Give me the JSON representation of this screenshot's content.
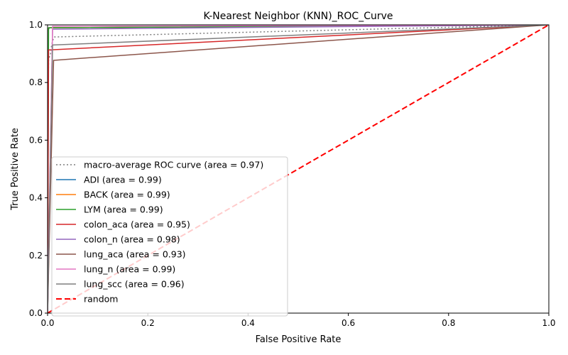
{
  "chart_data": {
    "type": "line",
    "title": "K-Nearest Neighbor (KNN)_ROC_Curve",
    "xlabel": "False Positive Rate",
    "ylabel": "True Positive Rate",
    "xlim": [
      0.0,
      1.0
    ],
    "ylim": [
      0.0,
      1.0
    ],
    "xticks": [
      "0.0",
      "0.2",
      "0.4",
      "0.6",
      "0.8",
      "1.0"
    ],
    "yticks": [
      "0.0",
      "0.2",
      "0.4",
      "0.6",
      "0.8",
      "1.0"
    ],
    "grid": false,
    "legend_position": "lower-left",
    "series": [
      {
        "name": "macro-average ROC curve (area = 0.97)",
        "color": "#7f7f7f",
        "style": "dotted",
        "x": [
          0.0,
          0.0,
          0.002,
          0.006,
          0.008,
          0.012,
          0.014,
          1.0
        ],
        "y": [
          0.0,
          0.5,
          0.88,
          0.9,
          0.93,
          0.955,
          0.958,
          1.0
        ]
      },
      {
        "name": "ADI (area = 0.99)",
        "color": "#1f77b4",
        "style": "solid",
        "x": [
          0.0,
          0.0,
          0.004,
          1.0
        ],
        "y": [
          0.0,
          0.98,
          0.99,
          1.0
        ]
      },
      {
        "name": "BACK (area = 0.99)",
        "color": "#ff7f0e",
        "style": "solid",
        "x": [
          0.0,
          0.0,
          0.004,
          1.0
        ],
        "y": [
          0.0,
          0.985,
          0.99,
          1.0
        ]
      },
      {
        "name": "LYM (area = 0.99)",
        "color": "#2ca02c",
        "style": "solid",
        "x": [
          0.0,
          0.002,
          1.0
        ],
        "y": [
          0.0,
          0.99,
          1.0
        ]
      },
      {
        "name": "colon_aca (area = 0.95)",
        "color": "#d62728",
        "style": "solid",
        "x": [
          0.0,
          0.002,
          1.0
        ],
        "y": [
          0.0,
          0.913,
          1.0
        ]
      },
      {
        "name": "colon_n (area = 0.98)",
        "color": "#9467bd",
        "style": "solid",
        "x": [
          0.0,
          0.01,
          1.0
        ],
        "y": [
          0.0,
          0.985,
          1.0
        ]
      },
      {
        "name": "lung_aca (area = 0.93)",
        "color": "#8c564b",
        "style": "solid",
        "x": [
          0.0,
          0.012,
          1.0
        ],
        "y": [
          0.0,
          0.877,
          1.0
        ]
      },
      {
        "name": "lung_n (area = 0.99)",
        "color": "#e377c2",
        "style": "solid",
        "x": [
          0.0,
          0.01,
          1.0
        ],
        "y": [
          0.0,
          0.995,
          1.0
        ]
      },
      {
        "name": "lung_scc (area = 0.96)",
        "color": "#7f7f7f",
        "style": "solid",
        "x": [
          0.0,
          0.01,
          1.0
        ],
        "y": [
          0.0,
          0.93,
          1.0
        ]
      },
      {
        "name": "random",
        "color": "#ff0000",
        "style": "dashed",
        "x": [
          0.0,
          1.0
        ],
        "y": [
          0.0,
          1.0
        ]
      }
    ]
  }
}
